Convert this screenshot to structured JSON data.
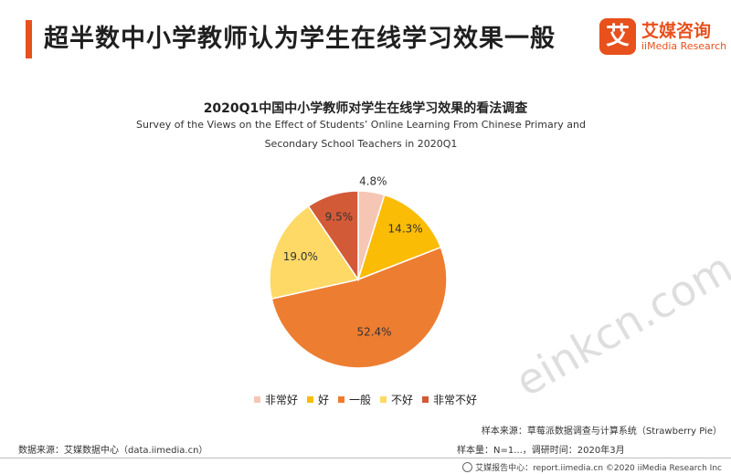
{
  "header": {
    "title": "超半数中小学教师认为学生在线学习效果一般",
    "brand_mark": "艾",
    "brand_cn": "艾媒咨询",
    "brand_en": "iiMedia Research",
    "accent_color": "#e8501c"
  },
  "chart_data": {
    "type": "pie",
    "title": "2020Q1中国中小学教师对学生在线学习效果的看法调查",
    "subtitle_line1": "Survey of the Views on the Effect of Students’ Online Learning From Chinese Primary and",
    "subtitle_line2": "Secondary  School  Teachers in 2020Q1",
    "categories": [
      "非常好",
      "好",
      "一般",
      "不好",
      "非常不好"
    ],
    "values": [
      4.8,
      14.3,
      52.4,
      19.0,
      9.5
    ],
    "labels": [
      "4.8%",
      "14.3%",
      "52.4%",
      "19.0%",
      "9.5%"
    ],
    "colors": [
      "#f6c6b4",
      "#fbbc05",
      "#ed7d31",
      "#ffd966",
      "#d35a37"
    ],
    "legend_position": "bottom",
    "start_angle": "12 o'clock, clockwise"
  },
  "sources": {
    "data_source": "数据来源：艾媒数据中心（data.iimedia.cn）",
    "sample_source": "样本来源：草莓派数据调查与计算系统（Strawberry  Pie）",
    "sample_size": "样本量：N=1...，调研时间：2020年3月"
  },
  "footer": {
    "text": "艾媒报告中心：report.iimedia.cn  ©2020  iiMedia Research Inc"
  },
  "watermark": "einkcn.com"
}
